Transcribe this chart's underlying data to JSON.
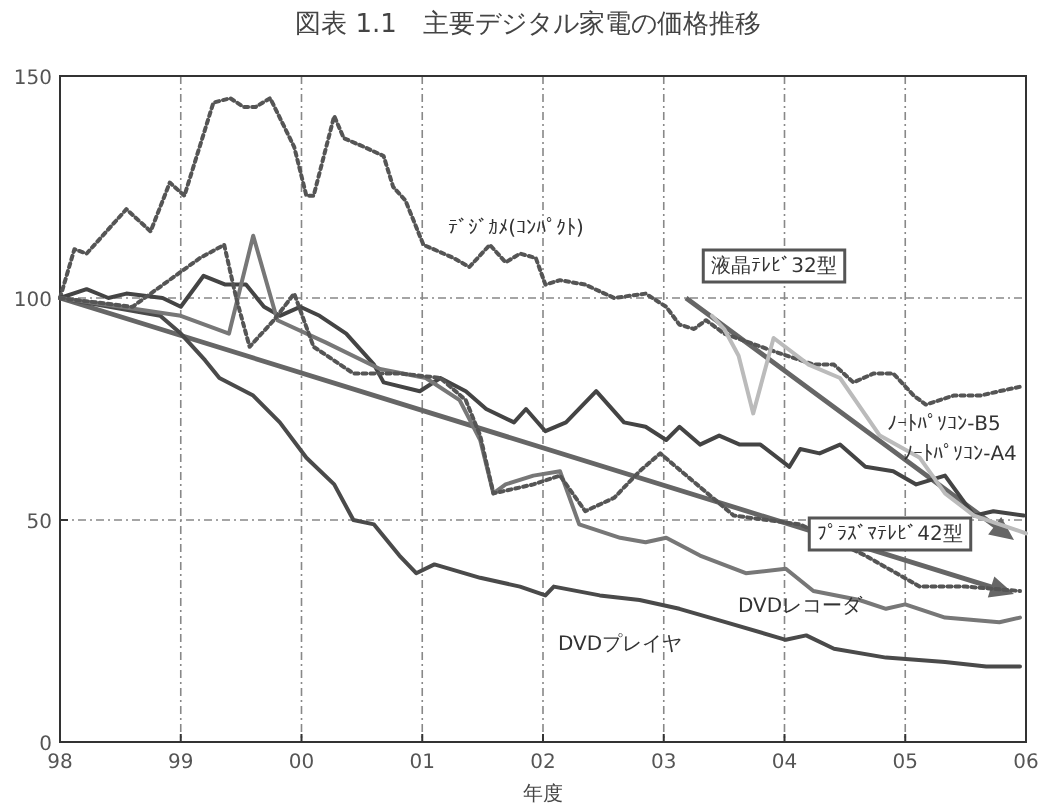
{
  "chart_data": {
    "type": "line",
    "title": "図表 1.1　主要デジタル家電の価格推移",
    "xlabel": "年度",
    "xlim": [
      1998,
      2006
    ],
    "ylim": [
      0,
      150
    ],
    "xticks": [
      {
        "value": 1998,
        "label": "98"
      },
      {
        "value": 1999,
        "label": "99"
      },
      {
        "value": 2000,
        "label": "00"
      },
      {
        "value": 2001,
        "label": "01"
      },
      {
        "value": 2002,
        "label": "02"
      },
      {
        "value": 2003,
        "label": "03"
      },
      {
        "value": 2004,
        "label": "04"
      },
      {
        "value": 2005,
        "label": "05"
      },
      {
        "value": 2006,
        "label": "06"
      }
    ],
    "yticks": [
      0,
      50,
      100,
      150
    ],
    "grid": true,
    "series": [
      {
        "color": "#555555",
        "line_style": "dotted",
        "x": [
          1998.0,
          1998.12,
          1998.22,
          1998.55,
          1998.75,
          1998.91,
          1999.03,
          1999.27,
          1999.41,
          1999.52,
          1999.62,
          1999.74,
          1999.94,
          2000.04,
          2000.1,
          2000.27,
          2000.35,
          2000.52,
          2000.68,
          2000.76,
          2000.86,
          2001.01,
          2001.26,
          2001.39,
          2001.56,
          2001.69,
          2001.81,
          2001.94,
          2002.02,
          2002.14,
          2002.35,
          2002.59,
          2002.85,
          2003.02,
          2003.13,
          2003.25,
          2003.35,
          2003.5,
          2003.91,
          2004.24,
          2004.41,
          2004.57,
          2004.74,
          2004.9,
          2005.07,
          2005.17,
          2005.4,
          2005.62,
          2005.78,
          2005.95
        ],
        "values": [
          100,
          111,
          110,
          120,
          115,
          126,
          123,
          144,
          145,
          143,
          143,
          145,
          134,
          123,
          123,
          141,
          136,
          134,
          132,
          125,
          122,
          112,
          109,
          107,
          112,
          108,
          110,
          109,
          103,
          104,
          103,
          100,
          101,
          98,
          94,
          93,
          95,
          92,
          88,
          85,
          85,
          81,
          83,
          83,
          78,
          76,
          78,
          78,
          79,
          80
        ]
      },
      {
        "color": "#444444",
        "line_style": "solid",
        "x": [
          1998.0,
          1998.22,
          1998.4,
          1998.55,
          1998.85,
          1999.0,
          1999.19,
          1999.37,
          1999.54,
          1999.69,
          1999.82,
          1999.99,
          2000.15,
          2000.37,
          2000.6,
          2000.68,
          2000.98,
          2001.15,
          2001.36,
          2001.53,
          2001.76,
          2001.86,
          2002.02,
          2002.19,
          2002.44,
          2002.67,
          2002.85,
          2003.02,
          2003.13,
          2003.3,
          2003.46,
          2003.63,
          2003.8,
          2004.04,
          2004.13,
          2004.29,
          2004.46,
          2004.67,
          2004.9,
          2005.09,
          2005.33,
          2005.57,
          2005.73,
          2005.98
        ],
        "values": [
          100,
          102,
          100,
          101,
          100,
          98,
          105,
          103,
          103,
          98,
          96,
          98,
          96,
          92,
          85,
          81,
          79,
          82,
          79,
          75,
          72,
          75,
          70,
          72,
          79,
          72,
          71,
          68,
          71,
          67,
          69,
          67,
          67,
          62,
          66,
          65,
          67,
          62,
          61,
          58,
          60,
          51,
          52,
          51
        ]
      },
      {
        "color": "#4a4a4a",
        "line_style": "solid",
        "x": [
          1998.0,
          1998.83,
          1999.0,
          1999.2,
          1999.32,
          1999.6,
          1999.82,
          2000.04,
          2000.27,
          2000.43,
          2000.6,
          2000.81,
          2000.95,
          2001.1,
          2001.48,
          2001.81,
          2002.02,
          2002.09,
          2002.47,
          2002.8,
          2003.13,
          2003.51,
          2004.01,
          2004.18,
          2004.41,
          2004.84,
          2005.33,
          2005.67,
          2005.95
        ],
        "values": [
          100,
          96,
          92,
          86,
          82,
          78,
          72,
          64,
          58,
          50,
          49,
          42,
          38,
          40,
          37,
          35,
          33,
          35,
          33,
          32,
          30,
          27,
          23,
          24,
          21,
          19,
          18,
          17,
          17
        ]
      },
      {
        "color": "#777777",
        "line_style": "solid",
        "x": [
          1998.0,
          1998.5,
          1999.0,
          1999.4,
          1999.6,
          1999.8,
          2000.2,
          2000.65,
          2001.03,
          2001.31,
          2001.48,
          2001.59,
          2001.69,
          2001.92,
          2002.14,
          2002.3,
          2002.64,
          2002.85,
          2003.02,
          2003.3,
          2003.68,
          2004.01,
          2004.24,
          2004.62,
          2004.84,
          2005.0,
          2005.33,
          2005.78,
          2005.95
        ],
        "values": [
          100,
          98,
          96,
          92,
          114,
          95,
          90,
          84,
          82,
          77,
          68,
          56,
          58,
          60,
          61,
          49,
          46,
          45,
          46,
          42,
          38,
          39,
          34,
          32,
          30,
          31,
          28,
          27,
          28
        ]
      },
      {
        "color": "#555555",
        "line_style": "dotted",
        "x": [
          1998.0,
          1998.6,
          1999.16,
          1999.36,
          1999.46,
          1999.57,
          1999.77,
          1999.94,
          2000.1,
          2000.43,
          2000.81,
          2001.15,
          2001.36,
          2001.48,
          2001.59,
          2001.92,
          2002.14,
          2002.35,
          2002.59,
          2002.8,
          2002.97,
          2003.58,
          2004.13,
          2004.67,
          2005.12,
          2005.5,
          2005.95
        ],
        "values": [
          100,
          98,
          109,
          112,
          100,
          89,
          95,
          101,
          89,
          83,
          83,
          82,
          77,
          69,
          56,
          58,
          60,
          52,
          55,
          61,
          65,
          51,
          49,
          42,
          35,
          35,
          34
        ]
      },
      {
        "color": "#bbbbbb",
        "line_style": "solid",
        "x": [
          2003.4,
          2003.5,
          2003.62,
          2003.74,
          2003.91,
          2004.2,
          2004.46,
          2004.79,
          2005.12,
          2005.33,
          2005.57,
          2006.0
        ],
        "values": [
          96,
          93,
          87,
          74,
          91,
          85,
          82,
          69,
          64,
          56,
          51,
          47
        ]
      }
    ],
    "annotations": [
      "ﾃﾞｼﾞｶﾒ(ｺﾝﾊﾟｸﾄ)",
      "液晶ﾃﾚﾋﾞ32型",
      "ﾉｰﾄﾊﾟｿｺﾝ-B5",
      "ﾉｰﾄﾊﾟｿｺﾝ-A4",
      "ﾌﾟﾗｽﾞﾏﾃﾚﾋﾞ42型",
      "DVDレコーダ",
      "DVDプレイヤ"
    ]
  }
}
